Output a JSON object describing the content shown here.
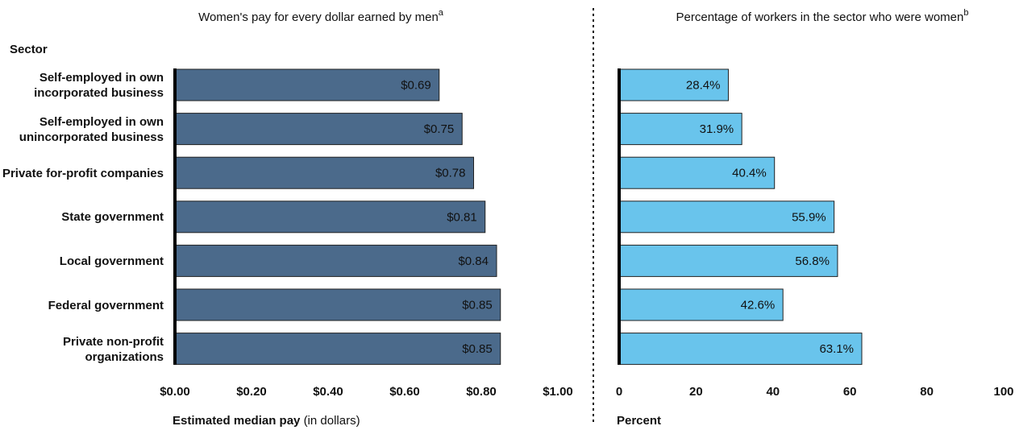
{
  "chart_data": [
    {
      "type": "bar",
      "orientation": "horizontal",
      "title": "Women's pay for every dollar earned by men",
      "title_note": "a",
      "category_label": "Sector",
      "categories": [
        "Self-employed in own incorporated business",
        "Self-employed in own unincorporated business",
        "Private for-profit companies",
        "State government",
        "Local government",
        "Federal government",
        "Private non-profit organizations"
      ],
      "values": [
        0.69,
        0.75,
        0.78,
        0.81,
        0.84,
        0.85,
        0.85
      ],
      "value_labels": [
        "$0.69",
        "$0.75",
        "$0.78",
        "$0.81",
        "$0.84",
        "$0.85",
        "$0.85"
      ],
      "color": "#4b6a8b",
      "xlim": [
        0,
        1
      ],
      "xticks": [
        {
          "value": 0,
          "label": "$0.00"
        },
        {
          "value": 0.2,
          "label": "$0.20"
        },
        {
          "value": 0.4,
          "label": "$0.40"
        },
        {
          "value": 0.6,
          "label": "$0.60"
        },
        {
          "value": 0.8,
          "label": "$0.80"
        },
        {
          "value": 1,
          "label": "$1.00"
        }
      ],
      "x_label": "Estimated median pay",
      "x_label_note": "(in dollars)"
    },
    {
      "type": "bar",
      "orientation": "horizontal",
      "title": "Percentage of workers in the sector who were women",
      "title_note": "b",
      "values": [
        28.4,
        31.9,
        40.4,
        55.9,
        56.8,
        42.6,
        63.1
      ],
      "value_labels": [
        "28.4%",
        "31.9%",
        "40.4%",
        "55.9%",
        "56.8%",
        "42.6%",
        "63.1%"
      ],
      "color": "#69c4ec",
      "xlim": [
        0,
        100
      ],
      "xticks": [
        0,
        20,
        40,
        60,
        80,
        100
      ],
      "x_label": "Percent"
    }
  ]
}
